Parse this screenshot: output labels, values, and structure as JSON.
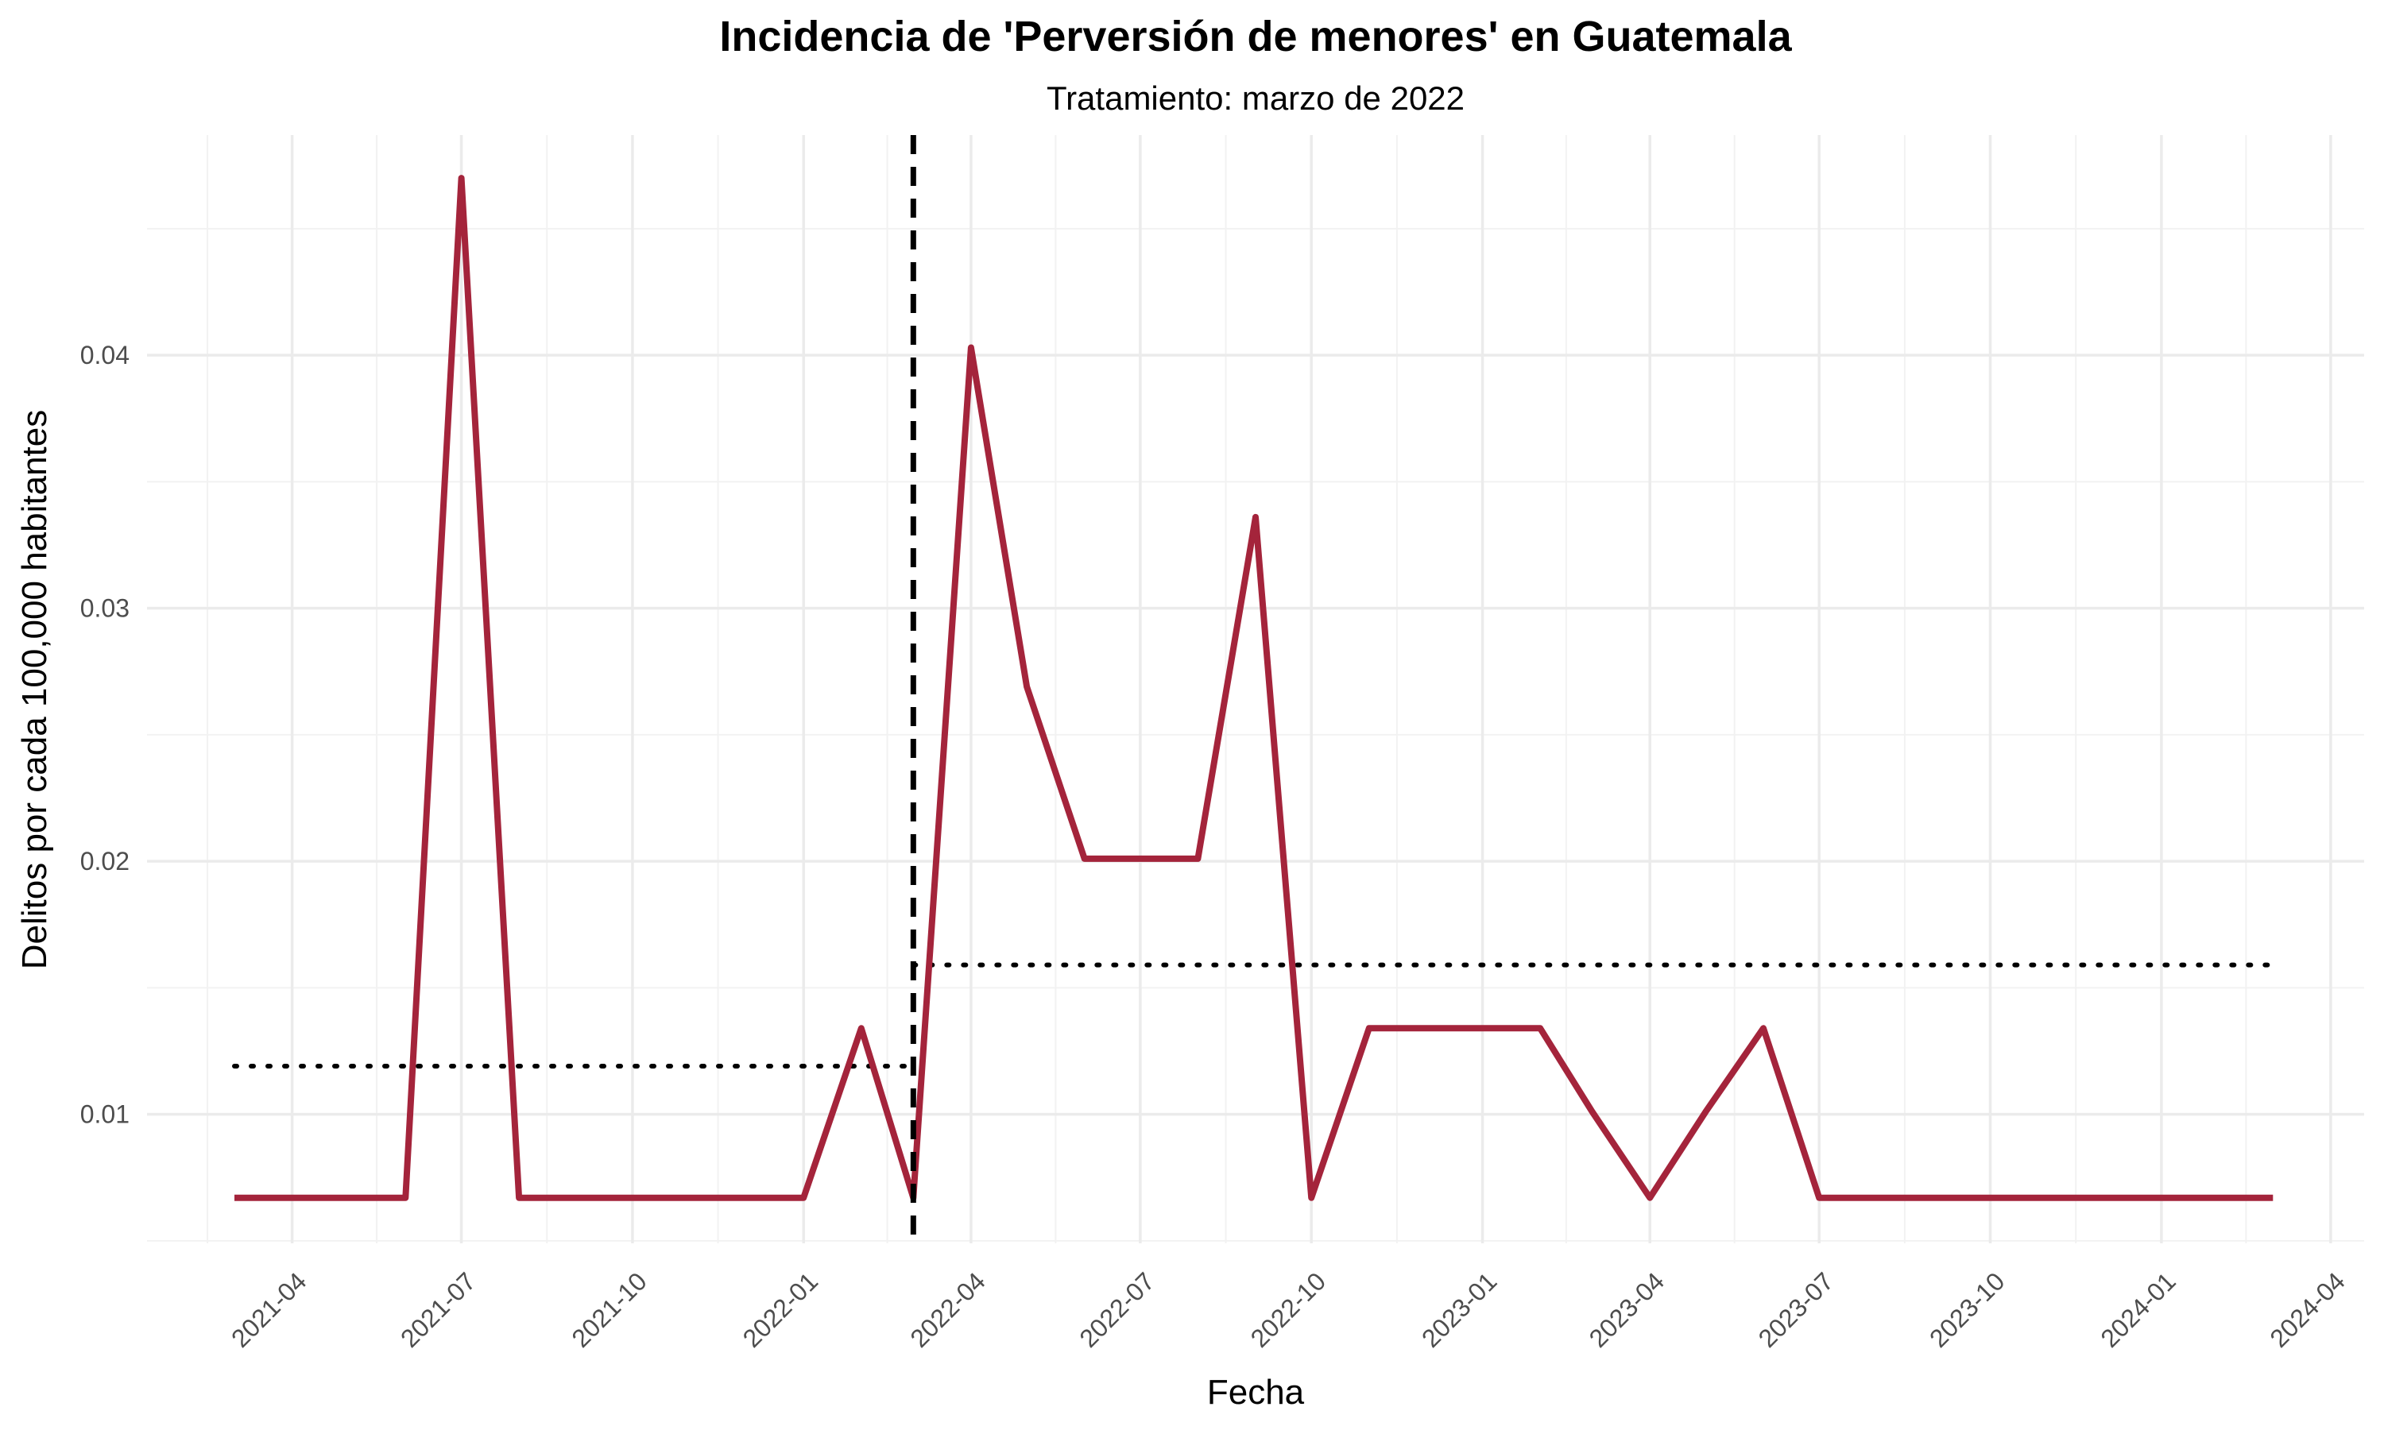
{
  "chart_data": {
    "type": "line",
    "title": "Incidencia de 'Perversión de menores' en Guatemala",
    "subtitle": "Tratamiento: marzo de 2022",
    "xlabel": "Fecha",
    "ylabel": "Delitos por cada 100,000 habitantes",
    "xlim": [
      "2021-01-13",
      "2024-04-19"
    ],
    "ylim": [
      0.0049,
      0.0487
    ],
    "x_ticks": [
      "2021-04",
      "2021-07",
      "2021-10",
      "2022-01",
      "2022-04",
      "2022-07",
      "2022-10",
      "2023-01",
      "2023-04",
      "2023-07",
      "2023-10",
      "2024-01",
      "2024-04"
    ],
    "y_ticks": [
      "0.01",
      "0.02",
      "0.03",
      "0.04"
    ],
    "grid": true,
    "legend": "none",
    "series": [
      {
        "color": "#A4243B",
        "x": [
          "2021-03-01",
          "2021-04-01",
          "2021-05-01",
          "2021-06-01",
          "2021-07-01",
          "2021-08-01",
          "2021-09-01",
          "2021-10-01",
          "2021-11-01",
          "2021-12-01",
          "2022-01-01",
          "2022-02-01",
          "2022-03-01",
          "2022-04-01",
          "2022-05-01",
          "2022-06-01",
          "2022-07-01",
          "2022-08-01",
          "2022-09-01",
          "2022-10-01",
          "2022-11-01",
          "2022-12-01",
          "2023-01-01",
          "2023-02-01",
          "2023-03-01",
          "2023-04-01",
          "2023-05-01",
          "2023-06-01",
          "2023-07-01",
          "2023-08-01",
          "2023-09-01",
          "2023-10-01",
          "2023-11-01",
          "2023-12-01",
          "2024-01-01",
          "2024-02-01",
          "2024-03-01"
        ],
        "y": [
          0.0067,
          0.0067,
          0.0067,
          0.0067,
          0.047,
          0.0067,
          0.0067,
          0.0067,
          0.0067,
          0.0067,
          0.0067,
          0.0134,
          0.0067,
          0.0403,
          0.0269,
          0.0201,
          0.0201,
          0.0201,
          0.0336,
          0.0067,
          0.0134,
          0.0134,
          0.0134,
          0.0134,
          0.0101,
          0.0067,
          0.0101,
          0.0134,
          0.0067,
          0.0067,
          0.0067,
          0.0067,
          0.0067,
          0.0067,
          0.0067,
          0.0067,
          0.0067
        ]
      }
    ],
    "treatment_line": {
      "x": "2022-03-01",
      "style": "dashed",
      "color": "#000000"
    },
    "mean_lines": [
      {
        "x": [
          "2021-03-01",
          "2022-03-01"
        ],
        "y": 0.0119,
        "style": "dotted",
        "color": "#000000"
      },
      {
        "x": [
          "2022-03-01",
          "2024-03-01"
        ],
        "y": 0.0159,
        "style": "dotted",
        "color": "#000000"
      }
    ]
  }
}
